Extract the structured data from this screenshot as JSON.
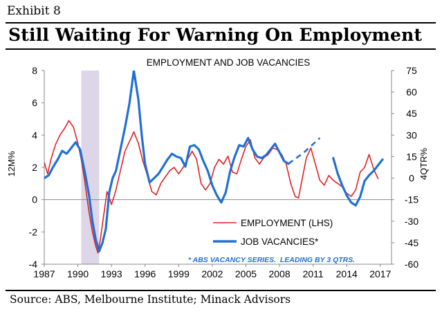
{
  "header": {
    "exhibit": "Exhibit 8",
    "title": "Still Waiting For Warning On Employment"
  },
  "source": "Source: ABS, Melbourne Institute; Minack Advisors",
  "chart_data": {
    "type": "line",
    "title": "EMPLOYMENT AND JOB VACANCIES",
    "ylabel_left": "12M%",
    "ylabel_right": "4QTR%",
    "ylim_left": [
      -4,
      8
    ],
    "ylim_right": [
      -60,
      75
    ],
    "xlim": [
      1987,
      2018
    ],
    "x_ticks": [
      "1987",
      "1990",
      "1993",
      "1996",
      "1999",
      "2002",
      "2005",
      "2008",
      "2011",
      "2014",
      "2017"
    ],
    "y_ticks_left": [
      "8",
      "6",
      "4",
      "2",
      "0",
      "-2",
      "-4"
    ],
    "y_ticks_right": [
      "75",
      "60",
      "45",
      "30",
      "15",
      "0",
      "-15",
      "-30",
      "-45",
      "-60"
    ],
    "recession_band": [
      1990.3,
      1991.9
    ],
    "legend": {
      "employment": "EMPLOYMENT (LHS)",
      "vacancies": "JOB VACANCIES*"
    },
    "note": "* ABS VACANCY SERIES.  LEADING BY 3 QTRS.",
    "colors": {
      "employment": "#e02020",
      "vacancies": "#1f6fd6",
      "dashed": "#1f6fd6",
      "band": "#ddd5e8"
    },
    "series": [
      {
        "name": "EMPLOYMENT (LHS)",
        "axis": "left",
        "points": [
          [
            1987.0,
            2.3
          ],
          [
            1987.3,
            1.6
          ],
          [
            1987.6,
            2.5
          ],
          [
            1988.0,
            3.4
          ],
          [
            1988.4,
            4.0
          ],
          [
            1988.8,
            4.4
          ],
          [
            1989.2,
            4.9
          ],
          [
            1989.6,
            4.5
          ],
          [
            1990.0,
            3.5
          ],
          [
            1990.3,
            2.5
          ],
          [
            1990.6,
            1.2
          ],
          [
            1991.0,
            -0.8
          ],
          [
            1991.3,
            -2.0
          ],
          [
            1991.6,
            -2.9
          ],
          [
            1991.8,
            -3.3
          ],
          [
            1992.0,
            -2.5
          ],
          [
            1992.3,
            -1.0
          ],
          [
            1992.6,
            0.5
          ],
          [
            1993.0,
            -0.3
          ],
          [
            1993.4,
            0.6
          ],
          [
            1993.8,
            1.8
          ],
          [
            1994.2,
            3.0
          ],
          [
            1994.6,
            3.6
          ],
          [
            1995.0,
            4.2
          ],
          [
            1995.4,
            3.5
          ],
          [
            1995.8,
            2.4
          ],
          [
            1996.2,
            1.5
          ],
          [
            1996.6,
            0.5
          ],
          [
            1997.0,
            0.3
          ],
          [
            1997.4,
            1.0
          ],
          [
            1997.8,
            1.4
          ],
          [
            1998.2,
            1.8
          ],
          [
            1998.6,
            2.0
          ],
          [
            1999.0,
            1.6
          ],
          [
            1999.4,
            2.0
          ],
          [
            1999.8,
            2.5
          ],
          [
            2000.2,
            3.0
          ],
          [
            2000.6,
            2.5
          ],
          [
            2001.0,
            1.0
          ],
          [
            2001.4,
            0.6
          ],
          [
            2001.8,
            1.0
          ],
          [
            2002.2,
            2.0
          ],
          [
            2002.6,
            2.5
          ],
          [
            2003.0,
            2.2
          ],
          [
            2003.4,
            2.7
          ],
          [
            2003.8,
            1.7
          ],
          [
            2004.2,
            1.6
          ],
          [
            2004.6,
            2.5
          ],
          [
            2005.0,
            3.3
          ],
          [
            2005.4,
            3.7
          ],
          [
            2005.8,
            2.6
          ],
          [
            2006.2,
            2.2
          ],
          [
            2006.6,
            2.6
          ],
          [
            2007.0,
            2.8
          ],
          [
            2007.4,
            3.2
          ],
          [
            2007.8,
            3.1
          ],
          [
            2008.2,
            2.8
          ],
          [
            2008.6,
            2.2
          ],
          [
            2009.0,
            1.0
          ],
          [
            2009.4,
            0.2
          ],
          [
            2009.7,
            0.1
          ],
          [
            2010.0,
            1.2
          ],
          [
            2010.4,
            2.6
          ],
          [
            2010.8,
            3.2
          ],
          [
            2011.2,
            2.2
          ],
          [
            2011.6,
            1.2
          ],
          [
            2012.0,
            0.9
          ],
          [
            2012.4,
            1.5
          ],
          [
            2012.8,
            1.2
          ],
          [
            2013.2,
            1.0
          ],
          [
            2013.6,
            0.8
          ],
          [
            2014.0,
            0.4
          ],
          [
            2014.4,
            0.2
          ],
          [
            2014.8,
            0.6
          ],
          [
            2015.2,
            1.7
          ],
          [
            2015.6,
            2.0
          ],
          [
            2016.0,
            2.8
          ],
          [
            2016.4,
            1.9
          ],
          [
            2016.8,
            1.3
          ]
        ]
      },
      {
        "name": "JOB VACANCIES*",
        "axis": "right",
        "points": [
          [
            1987.0,
            0
          ],
          [
            1987.4,
            2
          ],
          [
            1987.8,
            8
          ],
          [
            1988.2,
            13
          ],
          [
            1988.6,
            19
          ],
          [
            1989.0,
            17
          ],
          [
            1989.4,
            21
          ],
          [
            1989.8,
            25
          ],
          [
            1990.2,
            20
          ],
          [
            1990.6,
            5
          ],
          [
            1991.0,
            -12
          ],
          [
            1991.3,
            -30
          ],
          [
            1991.6,
            -43
          ],
          [
            1991.9,
            -51
          ],
          [
            1992.2,
            -45
          ],
          [
            1992.5,
            -35
          ],
          [
            1992.8,
            -10
          ],
          [
            1993.1,
            0
          ],
          [
            1993.4,
            5
          ],
          [
            1993.8,
            20
          ],
          [
            1994.2,
            35
          ],
          [
            1994.6,
            52
          ],
          [
            1995.0,
            75
          ],
          [
            1995.4,
            55
          ],
          [
            1995.7,
            30
          ],
          [
            1996.0,
            10
          ],
          [
            1996.4,
            -3
          ],
          [
            1996.8,
            0
          ],
          [
            1997.2,
            3
          ],
          [
            1997.6,
            8
          ],
          [
            1998.0,
            13
          ],
          [
            1998.4,
            17
          ],
          [
            1998.8,
            15
          ],
          [
            1999.2,
            14
          ],
          [
            1999.6,
            8
          ],
          [
            2000.0,
            22
          ],
          [
            2000.4,
            23
          ],
          [
            2000.8,
            20
          ],
          [
            2001.2,
            12
          ],
          [
            2001.6,
            5
          ],
          [
            2002.0,
            -5
          ],
          [
            2002.4,
            -12
          ],
          [
            2002.8,
            -17
          ],
          [
            2003.2,
            -10
          ],
          [
            2003.6,
            5
          ],
          [
            2004.0,
            15
          ],
          [
            2004.4,
            23
          ],
          [
            2004.8,
            22
          ],
          [
            2005.2,
            28
          ],
          [
            2005.6,
            20
          ],
          [
            2006.0,
            15
          ],
          [
            2006.4,
            14
          ],
          [
            2006.8,
            16
          ],
          [
            2007.2,
            20
          ],
          [
            2007.6,
            24
          ],
          [
            2008.0,
            18
          ],
          [
            2008.4,
            12
          ],
          [
            2008.8,
            10
          ]
        ]
      },
      {
        "name": "JOB VACANCIES* (extension)",
        "axis": "right",
        "dashed": true,
        "points": [
          [
            2008.8,
            10
          ],
          [
            2010.2,
            18
          ],
          [
            2011.6,
            28
          ]
        ]
      },
      {
        "name": "JOB VACANCIES* (recent)",
        "axis": "right",
        "points": [
          [
            2012.8,
            14
          ],
          [
            2013.2,
            3
          ],
          [
            2013.6,
            -5
          ],
          [
            2014.0,
            -12
          ],
          [
            2014.4,
            -17
          ],
          [
            2014.8,
            -19
          ],
          [
            2015.2,
            -13
          ],
          [
            2015.6,
            -2
          ],
          [
            2016.0,
            2
          ],
          [
            2016.4,
            5
          ],
          [
            2016.8,
            9
          ],
          [
            2017.2,
            13
          ]
        ]
      }
    ]
  }
}
